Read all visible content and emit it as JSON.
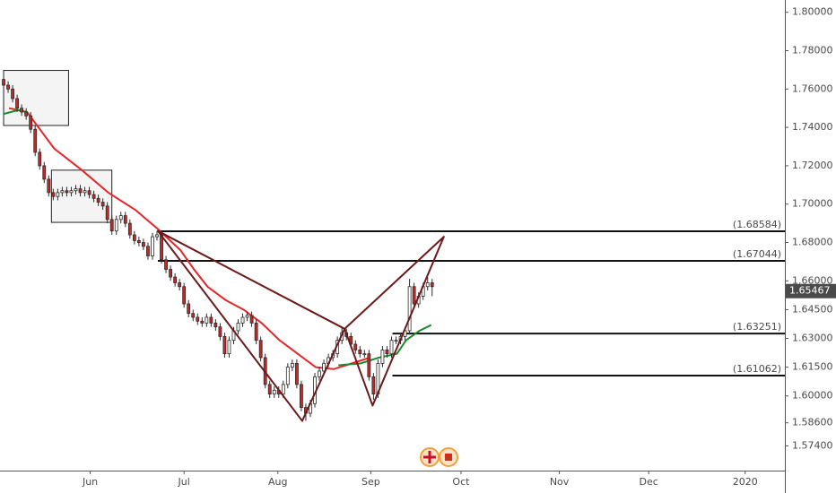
{
  "chart_data": {
    "type": "candlestick",
    "up_color": "#ffffff",
    "down_color": "#c62828",
    "wick_color": "#2b2b2b",
    "open": [
      1.765,
      1.762,
      1.76,
      1.755,
      1.75,
      1.748,
      1.746,
      1.739,
      1.727,
      1.72,
      1.713,
      1.706,
      1.704,
      1.706,
      1.707,
      1.706,
      1.707,
      1.708,
      1.706,
      1.707,
      1.705,
      1.703,
      1.701,
      1.699,
      1.692,
      1.686,
      1.692,
      1.694,
      1.69,
      1.684,
      1.681,
      1.68,
      1.678,
      1.673,
      1.683,
      1.684,
      1.671,
      1.666,
      1.662,
      1.659,
      1.657,
      1.648,
      1.643,
      1.641,
      1.639,
      1.638,
      1.641,
      1.638,
      1.636,
      1.631,
      1.622,
      1.629,
      1.634,
      1.638,
      1.641,
      1.642,
      1.638,
      1.629,
      1.62,
      1.606,
      1.601,
      1.603,
      1.601,
      1.606,
      1.615,
      1.617,
      1.606,
      1.594,
      1.591,
      1.596,
      1.61,
      1.613,
      1.617,
      1.62,
      1.622,
      1.629,
      1.633,
      1.631,
      1.627,
      1.624,
      1.622,
      1.622,
      1.61,
      1.601,
      1.617,
      1.624,
      1.622,
      1.629,
      1.629,
      1.631,
      1.634,
      1.657,
      1.648,
      1.652,
      1.657,
      1.659
    ],
    "high": [
      1.767,
      1.764,
      1.762,
      1.757,
      1.752,
      1.75,
      1.748,
      1.741,
      1.729,
      1.722,
      1.715,
      1.708,
      1.708,
      1.709,
      1.709,
      1.709,
      1.71,
      1.71,
      1.709,
      1.709,
      1.707,
      1.705,
      1.703,
      1.701,
      1.694,
      1.694,
      1.696,
      1.696,
      1.692,
      1.686,
      1.683,
      1.682,
      1.68,
      1.685,
      1.686,
      1.686,
      1.673,
      1.668,
      1.664,
      1.661,
      1.659,
      1.65,
      1.645,
      1.643,
      1.641,
      1.643,
      1.643,
      1.64,
      1.638,
      1.633,
      1.631,
      1.636,
      1.64,
      1.643,
      1.644,
      1.644,
      1.64,
      1.631,
      1.622,
      1.608,
      1.605,
      1.605,
      1.608,
      1.617,
      1.619,
      1.619,
      1.608,
      1.596,
      1.598,
      1.612,
      1.615,
      1.619,
      1.622,
      1.624,
      1.631,
      1.636,
      1.635,
      1.633,
      1.629,
      1.626,
      1.624,
      1.624,
      1.612,
      1.619,
      1.626,
      1.626,
      1.631,
      1.631,
      1.633,
      1.636,
      1.661,
      1.659,
      1.654,
      1.659,
      1.662,
      1.661
    ],
    "low": [
      1.76,
      1.758,
      1.753,
      1.748,
      1.746,
      1.744,
      1.737,
      1.725,
      1.718,
      1.711,
      1.704,
      1.702,
      1.702,
      1.704,
      1.704,
      1.704,
      1.705,
      1.704,
      1.704,
      1.703,
      1.701,
      1.699,
      1.697,
      1.69,
      1.684,
      1.684,
      1.69,
      1.688,
      1.682,
      1.679,
      1.678,
      1.676,
      1.671,
      1.671,
      1.681,
      1.669,
      1.664,
      1.66,
      1.657,
      1.655,
      1.646,
      1.641,
      1.639,
      1.637,
      1.636,
      1.636,
      1.636,
      1.634,
      1.629,
      1.62,
      1.62,
      1.627,
      1.632,
      1.636,
      1.639,
      1.636,
      1.627,
      1.618,
      1.604,
      1.599,
      1.599,
      1.599,
      1.599,
      1.604,
      1.613,
      1.604,
      1.592,
      1.587,
      1.589,
      1.594,
      1.608,
      1.611,
      1.615,
      1.618,
      1.62,
      1.627,
      1.629,
      1.625,
      1.622,
      1.62,
      1.62,
      1.608,
      1.598,
      1.599,
      1.615,
      1.62,
      1.62,
      1.627,
      1.627,
      1.629,
      1.632,
      1.646,
      1.646,
      1.65,
      1.655,
      1.652
    ],
    "close": [
      1.762,
      1.76,
      1.755,
      1.75,
      1.748,
      1.746,
      1.739,
      1.727,
      1.72,
      1.713,
      1.706,
      1.704,
      1.706,
      1.707,
      1.706,
      1.707,
      1.708,
      1.706,
      1.707,
      1.705,
      1.703,
      1.701,
      1.699,
      1.692,
      1.686,
      1.692,
      1.694,
      1.69,
      1.684,
      1.681,
      1.68,
      1.678,
      1.673,
      1.683,
      1.684,
      1.671,
      1.666,
      1.662,
      1.659,
      1.657,
      1.648,
      1.643,
      1.641,
      1.639,
      1.638,
      1.641,
      1.638,
      1.636,
      1.631,
      1.622,
      1.629,
      1.634,
      1.638,
      1.641,
      1.642,
      1.638,
      1.629,
      1.62,
      1.606,
      1.601,
      1.603,
      1.601,
      1.606,
      1.615,
      1.617,
      1.606,
      1.594,
      1.591,
      1.596,
      1.61,
      1.613,
      1.617,
      1.62,
      1.622,
      1.629,
      1.633,
      1.631,
      1.627,
      1.624,
      1.622,
      1.622,
      1.61,
      1.601,
      1.617,
      1.624,
      1.622,
      1.629,
      1.629,
      1.631,
      1.634,
      1.657,
      1.648,
      1.652,
      1.657,
      1.659,
      1.657
    ],
    "series": [
      {
        "color": "#e8262a",
        "x": [
          1.2,
          5.2,
          11.2,
          17.2,
          23.2,
          29.2,
          34.2,
          39.2,
          42.2,
          45.2,
          49.2,
          53.2,
          57.2,
          61.2,
          65.2,
          69.2,
          73.2,
          77.2,
          81.2
        ],
        "values": [
          1.75,
          1.748,
          1.729,
          1.718,
          1.706,
          1.697,
          1.687,
          1.676,
          1.666,
          1.657,
          1.65,
          1.645,
          1.638,
          1.629,
          1.622,
          1.615,
          1.614,
          1.617,
          1.62
        ]
      },
      {
        "color": "#1b8a2a",
        "x": [
          0,
          3.2,
          5.2,
          null,
          74.2,
          79.2,
          83.2,
          87.2,
          89.2,
          92.2,
          94.8
        ],
        "values": [
          1.747,
          1.749,
          1.748,
          null,
          1.616,
          1.617,
          1.62,
          1.622,
          1.629,
          1.634,
          1.637
        ]
      }
    ],
    "levels": [
      {
        "value": 1.68584,
        "label": "(1.68584)",
        "start": 34.2
      },
      {
        "value": 1.67044,
        "label": "(1.67044)",
        "start": 34.2
      },
      {
        "value": 1.63251,
        "label": "(1.63251)",
        "start": 86.2
      },
      {
        "value": 1.61062,
        "label": "(1.61062)",
        "start": 86.2
      }
    ],
    "pattern_color": "#6b1a1a",
    "pattern": [
      {
        "x": 34.2,
        "y": 1.686
      },
      {
        "x": 66.2,
        "y": 1.587
      },
      {
        "x": 75.6,
        "y": 1.635
      },
      {
        "x": 81.8,
        "y": 1.595
      },
      {
        "x": 97.6,
        "y": 1.683
      }
    ],
    "boxes": [
      {
        "x": [
          0,
          14.4
        ],
        "y": [
          1.741,
          1.7697
        ]
      },
      {
        "x": [
          10.6,
          24
        ],
        "y": [
          1.6905,
          1.7177
        ]
      }
    ],
    "last_price": 1.65467,
    "xlim": [
      -0.8,
      173.2
    ],
    "ylim": [
      1.5611,
      1.8064
    ],
    "xticks": [
      {
        "value": 19.2,
        "label": "Jun"
      },
      {
        "value": 40,
        "label": "Jul"
      },
      {
        "value": 60.8,
        "label": "Aug"
      },
      {
        "value": 81.4,
        "label": "Sep"
      },
      {
        "value": 101.4,
        "label": "Oct"
      },
      {
        "value": 123.2,
        "label": "Nov"
      },
      {
        "value": 143,
        "label": "Dec"
      },
      {
        "value": 164.4,
        "label": "2020"
      }
    ],
    "yticks": [
      {
        "value": 1.8,
        "label": "1.80000"
      },
      {
        "value": 1.78,
        "label": "1.78000"
      },
      {
        "value": 1.76,
        "label": "1.76000"
      },
      {
        "value": 1.74,
        "label": "1.74000"
      },
      {
        "value": 1.72,
        "label": "1.72000"
      },
      {
        "value": 1.7,
        "label": "1.70000"
      },
      {
        "value": 1.68,
        "label": "1.68000"
      },
      {
        "value": 1.66,
        "label": "1.66000"
      },
      {
        "value": 1.645,
        "label": "1.64500"
      },
      {
        "value": 1.63,
        "label": "1.63000"
      },
      {
        "value": 1.615,
        "label": "1.61500"
      },
      {
        "value": 1.6,
        "label": "1.60000"
      },
      {
        "value": 1.586,
        "label": "1.58600"
      },
      {
        "value": 1.574,
        "label": "1.57400"
      }
    ]
  }
}
